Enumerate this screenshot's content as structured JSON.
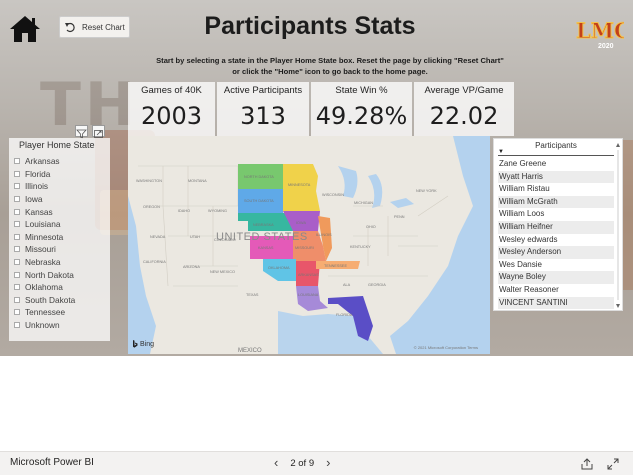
{
  "header": {
    "title": "Participants Stats",
    "reset_label": "Reset Chart",
    "logo_text": "LMC",
    "logo_year": "2020",
    "instructions_line1": "Start by selecting a state in the Player Home State box.  Reset the page by clicking \"Reset Chart\"",
    "instructions_line2": "or click the \"Home\" icon to go back to the home page."
  },
  "kpis": [
    {
      "label": "Games of 40K",
      "value": "2003"
    },
    {
      "label": "Active Participants",
      "value": "313"
    },
    {
      "label": "State Win %",
      "value": "49.28%"
    },
    {
      "label": "Average VP/Game",
      "value": "22.02"
    }
  ],
  "slicer": {
    "title": "Player Home State",
    "items": [
      "Arkansas",
      "Florida",
      "Illinois",
      "Iowa",
      "Kansas",
      "Louisiana",
      "Minnesota",
      "Missouri",
      "Nebraska",
      "North Dakota",
      "Oklahoma",
      "South Dakota",
      "Tennessee",
      "Unknown"
    ]
  },
  "map": {
    "country_label": "UNITED STATES",
    "mexico_label": "MEXICO",
    "bing_label": "Bing",
    "copyright": "© 2021 Microsoft Corporation  Terms",
    "state_labels": [
      "WASHINGTON",
      "MONTANA",
      "NORTH DAKOTA",
      "OREGON",
      "IDAHO",
      "WYOMING",
      "SOUTH DAKOTA",
      "NEVADA",
      "UTAH",
      "COLORADO",
      "NEBRASKA",
      "KANSAS",
      "CALIFORNIA",
      "ARIZONA",
      "NEW MEXICO",
      "OKLAHOMA",
      "TEXAS",
      "MINNESOTA",
      "IOWA",
      "MISSOURI",
      "ARKANSAS",
      "LOUISIANA",
      "WISCONSIN",
      "ILLINOIS",
      "MICHIGAN",
      "TENNESSEE",
      "FLORIDA",
      "OHIO",
      "PENN",
      "GEORGIA",
      "ALA",
      "KENTUCKY",
      "NEW YORK"
    ],
    "colors": {
      "north_dakota": "#78c86e",
      "minnesota": "#f0d24a",
      "south_dakota": "#5fa9e8",
      "nebraska": "#37b7a0",
      "iowa": "#a95ec8",
      "kansas": "#e45ab8",
      "missouri": "#ef8e6a",
      "illinois": "#f09a5c",
      "oklahoma": "#60c4e6",
      "arkansas": "#e8566a",
      "tennessee": "#f6ad72",
      "louisiana": "#a68ad8",
      "florida": "#5a4ec6"
    }
  },
  "participants": {
    "header": "Participants",
    "rows": [
      "Zane Greene",
      "Wyatt Harris",
      "William Ristau",
      "William McGrath",
      "William Loos",
      "William Heifner",
      "Wesley edwards",
      "Wesley Anderson",
      "Wes Dansie",
      "Wayne Boley",
      "Walter Reasoner",
      "VINCENT SANTINI"
    ]
  },
  "footer": {
    "brand": "Microsoft Power BI",
    "page_indicator": "2 of 9"
  }
}
